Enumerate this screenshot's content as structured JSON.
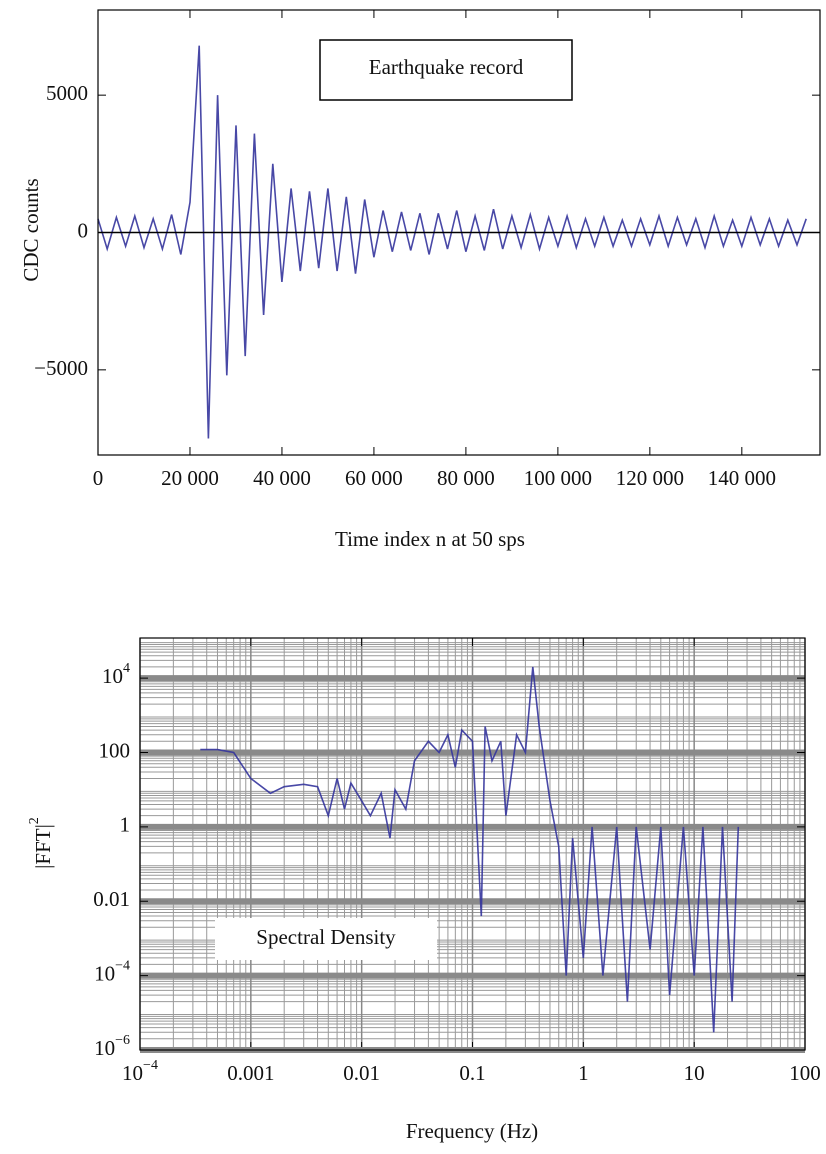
{
  "chart_data": [
    {
      "type": "line",
      "title": "Earthquake record",
      "ylabel": "CDC counts",
      "xlabel": "Time index n at 50 sps",
      "color": "#34349c",
      "grid": false,
      "xlim": [
        0,
        157000
      ],
      "ylim": [
        -8100,
        8100
      ],
      "xticks": [
        0,
        {
          "value": 20000,
          "label": "20 000"
        },
        {
          "value": 40000,
          "label": "40 000"
        },
        {
          "value": 60000,
          "label": "60 000"
        },
        {
          "value": 80000,
          "label": "80 000"
        },
        {
          "value": 100000,
          "label": "100 000"
        },
        {
          "value": 120000,
          "label": "120 000"
        },
        {
          "value": 140000,
          "label": "140 000"
        }
      ],
      "yticks": [
        {
          "value": -5000,
          "label": "−5000"
        },
        0,
        5000
      ],
      "x": [
        0,
        2000,
        4000,
        6000,
        8000,
        10000,
        12000,
        14000,
        16000,
        18000,
        20000,
        22000,
        24000,
        26000,
        28000,
        30000,
        32000,
        34000,
        36000,
        38000,
        40000,
        42000,
        44000,
        46000,
        48000,
        50000,
        52000,
        54000,
        56000,
        58000,
        60000,
        62000,
        64000,
        66000,
        68000,
        70000,
        72000,
        74000,
        76000,
        78000,
        80000,
        82000,
        84000,
        86000,
        88000,
        90000,
        92000,
        94000,
        96000,
        98000,
        100000,
        102000,
        104000,
        106000,
        108000,
        110000,
        112000,
        114000,
        116000,
        118000,
        120000,
        122000,
        124000,
        126000,
        128000,
        130000,
        132000,
        134000,
        136000,
        138000,
        140000,
        142000,
        144000,
        146000,
        148000,
        150000,
        152000,
        154000
      ],
      "values": [
        500,
        -600,
        550,
        -500,
        600,
        -550,
        500,
        -600,
        650,
        -800,
        1100,
        6800,
        -7500,
        5000,
        -5200,
        3900,
        -4500,
        3600,
        -3000,
        2500,
        -1800,
        1600,
        -1400,
        1500,
        -1300,
        1600,
        -1400,
        1300,
        -1500,
        1200,
        -900,
        800,
        -700,
        750,
        -650,
        700,
        -800,
        700,
        -600,
        800,
        -700,
        600,
        -650,
        850,
        -600,
        600,
        -550,
        650,
        -600,
        550,
        -500,
        600,
        -550,
        500,
        -500,
        550,
        -500,
        450,
        -500,
        500,
        -450,
        600,
        -500,
        550,
        -450,
        500,
        -550,
        600,
        -500,
        450,
        -500,
        550,
        -450,
        500,
        -500,
        450,
        -450,
        500
      ]
    },
    {
      "type": "line",
      "title": "Spectral Density",
      "ylabel": {
        "text": "|FFT|",
        "exponent": "2"
      },
      "xlabel": "Frequency (Hz)",
      "color": "#34349c",
      "grid": true,
      "xscale": "log",
      "yscale": "log",
      "xlim": [
        0.0001,
        100
      ],
      "ylim": [
        1e-06,
        120000
      ],
      "xticks": [
        {
          "value": 0.0001,
          "label": "10",
          "exponent": "−4"
        },
        0.001,
        0.01,
        0.1,
        1,
        10,
        100
      ],
      "yticks": [
        {
          "value": 1e-06,
          "label": "10",
          "exponent": "−6"
        },
        {
          "value": 0.0001,
          "label": "10",
          "exponent": "−4"
        },
        0.01,
        1,
        100,
        {
          "value": 10000,
          "label": "10",
          "exponent": "4"
        }
      ],
      "x": [
        0.00035,
        0.0005,
        0.0007,
        0.001,
        0.0015,
        0.002,
        0.003,
        0.004,
        0.005,
        0.006,
        0.007,
        0.008,
        0.01,
        0.012,
        0.015,
        0.018,
        0.02,
        0.025,
        0.03,
        0.04,
        0.05,
        0.06,
        0.07,
        0.08,
        0.1,
        0.12,
        0.13,
        0.15,
        0.18,
        0.2,
        0.25,
        0.3,
        0.35,
        0.4,
        0.5,
        0.6,
        0.7,
        0.8,
        1,
        1.2,
        1.5,
        2,
        2.5,
        3,
        4,
        5,
        6,
        8,
        10,
        12,
        15,
        18,
        22,
        25
      ],
      "values": [
        120,
        120,
        100,
        20,
        8,
        12,
        14,
        12,
        2,
        20,
        3,
        15,
        5,
        2,
        8,
        0.5,
        10,
        3,
        60,
        200,
        100,
        300,
        40,
        400,
        200,
        0.004,
        500,
        60,
        200,
        2,
        300,
        100,
        20000,
        500,
        5,
        0.3,
        0.0001,
        0.5,
        0.0003,
        1,
        0.0001,
        1,
        2e-05,
        1,
        0.0005,
        1,
        3e-05,
        1,
        0.0001,
        1,
        3e-06,
        1,
        2e-05,
        1
      ]
    }
  ]
}
